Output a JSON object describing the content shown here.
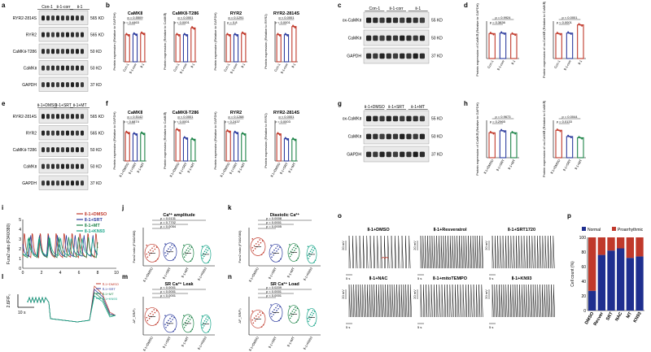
{
  "panel_labels": [
    "a",
    "b",
    "c",
    "d",
    "e",
    "f",
    "g",
    "h",
    "i",
    "j",
    "k",
    "l",
    "m",
    "n",
    "o",
    "p"
  ],
  "blots": {
    "a": {
      "headers": [
        "Con-1",
        "Ⅱ-1-corr",
        "Ⅱ-1"
      ],
      "rows": [
        {
          "label": "RYR2-2814S",
          "kd": "565 KD"
        },
        {
          "label": "RYR2",
          "kd": "565 KD"
        },
        {
          "label": "CaMKⅡ-T286",
          "kd": "50 KD"
        },
        {
          "label": "CaMKⅡ",
          "kd": "50 KD"
        },
        {
          "label": "GAPDH",
          "kd": "37 KD"
        }
      ]
    },
    "c": {
      "headers": [
        "Con-1",
        "Ⅱ-1-corr",
        "Ⅱ-1"
      ],
      "rows": [
        {
          "label": "ox-CaMKⅡ",
          "kd": "55 KD"
        },
        {
          "label": "CaMKⅡ",
          "kd": "50 KD"
        },
        {
          "label": "GAPDH",
          "kd": "37 KD"
        }
      ]
    },
    "e": {
      "headers": [
        "Ⅱ-1+DMSO",
        "Ⅱ-1+SRT",
        "Ⅱ-1+MT"
      ],
      "rows": [
        {
          "label": "RYR2-2814S",
          "kd": "565 KD"
        },
        {
          "label": "RYR2",
          "kd": "565 KD"
        },
        {
          "label": "CaMKⅡ-T286",
          "kd": "50 KD"
        },
        {
          "label": "CaMKⅡ",
          "kd": "50 KD"
        },
        {
          "label": "GAPDH",
          "kd": "37 KD"
        }
      ]
    },
    "g": {
      "headers": [
        "Ⅱ-1+DMSO",
        "Ⅱ-1+SRT",
        "Ⅱ-1+MT"
      ],
      "rows": [
        {
          "label": "ox-CaMKⅡ",
          "kd": "55 KD"
        },
        {
          "label": "CaMKⅡ",
          "kd": "50 KD"
        },
        {
          "label": "GAPDH",
          "kd": "37 KD"
        }
      ]
    }
  },
  "chart_data": [
    {
      "panel": "b",
      "type": "bar",
      "title": "CaMKⅡ",
      "ylabel": "Protein expression (Relative to GAPDH)",
      "ylim": [
        0,
        1.5
      ],
      "categories": [
        "Con-1",
        "Ⅱ-1-corr",
        "Ⅱ-1"
      ],
      "values": [
        1.0,
        1.02,
        1.05
      ],
      "colors": [
        "#c0392b",
        "#2e3d9f",
        "#c0392b"
      ],
      "p_values": [
        "p = 0.5509",
        "p = 0.4463"
      ]
    },
    {
      "panel": "b",
      "type": "bar",
      "title": "CaMKⅡ-T286",
      "ylabel": "Protein expression (Relative to CaMKⅡ)",
      "ylim": [
        0,
        1.5
      ],
      "categories": [
        "Con-1",
        "Ⅱ-1-corr",
        "Ⅱ-1"
      ],
      "values": [
        1.0,
        1.0,
        1.25
      ],
      "colors": [
        "#c0392b",
        "#2e3d9f",
        "#c0392b"
      ],
      "p_values": [
        "p < 0.0001",
        "p < 0.0001"
      ]
    },
    {
      "panel": "b",
      "type": "bar",
      "title": "RYR2",
      "ylabel": "Protein expression (Relative to GAPDH)",
      "ylim": [
        0,
        1.5
      ],
      "categories": [
        "Con-1",
        "Ⅱ-1-corr",
        "Ⅱ-1"
      ],
      "values": [
        1.0,
        1.0,
        1.05
      ],
      "colors": [
        "#c0392b",
        "#2e3d9f",
        "#c0392b"
      ],
      "p_values": [
        "p = 0.1291",
        "p = 0.8"
      ]
    },
    {
      "panel": "b",
      "type": "bar",
      "title": "RYR2-2814S",
      "ylabel": "Protein expression (Relative to RYR2)",
      "ylim": [
        0,
        1.5
      ],
      "categories": [
        "Con-1",
        "Ⅱ-1-corr",
        "Ⅱ-1"
      ],
      "values": [
        1.0,
        1.0,
        1.3
      ],
      "colors": [
        "#c0392b",
        "#2e3d9f",
        "#c0392b"
      ],
      "p_values": [
        "p < 0.0001",
        "p < 0.0001"
      ]
    },
    {
      "panel": "d",
      "type": "bar",
      "title": "",
      "ylabel": "Protein expression of CaMKⅡ (Relative to GAPDH)",
      "ylim": [
        0,
        1.5
      ],
      "categories": [
        "Con-1",
        "Ⅱ-1-corr",
        "Ⅱ-1"
      ],
      "values": [
        1.0,
        1.02,
        0.98
      ],
      "colors": [
        "#c0392b",
        "#2e3d9f",
        "#c0392b"
      ],
      "p_values": [
        "p = 0.9924",
        "p = 0.3836"
      ]
    },
    {
      "panel": "d",
      "type": "bar",
      "title": "",
      "ylabel": "Protein expression of ox-CaMKⅡ (Relative to CaMKⅡ)",
      "ylim": [
        0,
        1.5
      ],
      "categories": [
        "Con-1",
        "Ⅱ-1-corr",
        "Ⅱ-1"
      ],
      "values": [
        1.0,
        1.02,
        1.35
      ],
      "colors": [
        "#c0392b",
        "#2e3d9f",
        "#c0392b"
      ],
      "p_values": [
        "p < 0.0001",
        "p < 0.0001"
      ]
    },
    {
      "panel": "f",
      "type": "bar",
      "title": "CaMKⅡ",
      "ylabel": "Protein expression (Relative to GAPDH)",
      "ylim": [
        0,
        1.5
      ],
      "categories": [
        "Ⅱ-1+DMSO",
        "Ⅱ-1+SRT",
        "Ⅱ-1+MT"
      ],
      "values": [
        1.05,
        1.0,
        1.02
      ],
      "colors": [
        "#c0392b",
        "#2e3d9f",
        "#1e8449"
      ],
      "p_values": [
        "p = 0.5142",
        "p = 0.6874"
      ]
    },
    {
      "panel": "f",
      "type": "bar",
      "title": "CaMKⅡ-T286",
      "ylabel": "Protein expression (Relative to CaMKⅡ)",
      "ylim": [
        0,
        1.5
      ],
      "categories": [
        "Ⅱ-1+DMSO",
        "Ⅱ-1+SRT",
        "Ⅱ-1+MT"
      ],
      "values": [
        1.15,
        0.85,
        0.8
      ],
      "colors": [
        "#c0392b",
        "#2e3d9f",
        "#1e8449"
      ],
      "p_values": [
        "p < 0.0001",
        "p < 0.0001"
      ]
    },
    {
      "panel": "f",
      "type": "bar",
      "title": "RYR2",
      "ylabel": "Protein expression (Relative to GAPDH)",
      "ylim": [
        0,
        1.5
      ],
      "categories": [
        "Ⅱ-1+DMSO",
        "Ⅱ-1+SRT",
        "Ⅱ-1+MT"
      ],
      "values": [
        1.1,
        1.05,
        1.0
      ],
      "colors": [
        "#c0392b",
        "#2e3d9f",
        "#1e8449"
      ],
      "p_values": [
        "p = 0.1268",
        "p = 0.2437"
      ]
    },
    {
      "panel": "f",
      "type": "bar",
      "title": "RYR2-2814S",
      "ylabel": "Protein expression (Relative to RYR2)",
      "ylim": [
        0,
        1.5
      ],
      "categories": [
        "Ⅱ-1+DMSO",
        "Ⅱ-1+SRT",
        "Ⅱ-1+MT"
      ],
      "values": [
        1.0,
        0.82,
        0.8
      ],
      "colors": [
        "#c0392b",
        "#2e3d9f",
        "#1e8449"
      ],
      "p_values": [
        "p < 0.0001",
        "p = 0.0003"
      ]
    },
    {
      "panel": "h",
      "type": "bar",
      "title": "",
      "ylabel": "Protein expression of CaMKⅡ (Relative to GAPDH)",
      "ylim": [
        0,
        1.5
      ],
      "categories": [
        "Ⅱ-1+DMSO",
        "Ⅱ-1+SRT",
        "Ⅱ-1+MT"
      ],
      "values": [
        1.0,
        1.08,
        1.0
      ],
      "colors": [
        "#c0392b",
        "#2e3d9f",
        "#1e8449"
      ],
      "p_values": [
        "p = 0.9673",
        "p = 0.2965"
      ]
    },
    {
      "panel": "h",
      "type": "bar",
      "title": "",
      "ylabel": "Protein expression of ox-CaMKⅡ (Relative to CaMKⅡ)",
      "ylim": [
        0,
        1.5
      ],
      "categories": [
        "Ⅱ-1+DMSO",
        "Ⅱ-1+SRT",
        "Ⅱ-1+MT"
      ],
      "values": [
        1.1,
        0.85,
        0.8
      ],
      "colors": [
        "#c0392b",
        "#2e3d9f",
        "#1e8449"
      ],
      "p_values": [
        "p = 0.0044",
        "p = 0.0133"
      ]
    },
    {
      "panel": "i",
      "type": "line",
      "title": "",
      "xlabel": "",
      "ylabel": "Fura2 ratio (F340/380)",
      "xlim": [
        0,
        10
      ],
      "ylim": [
        0,
        5
      ],
      "xticks": [
        "0",
        "2",
        "4",
        "6",
        "8",
        "10"
      ],
      "yticks": [
        "0",
        "1",
        "2",
        "3",
        "4",
        "5"
      ],
      "series": [
        {
          "name": "Ⅱ-1+DMSO",
          "color": "#c0392b",
          "period": 0.85,
          "phase": 0.0,
          "min": 1.1,
          "max": 3.9
        },
        {
          "name": "Ⅱ-1+SRT",
          "color": "#2e3d9f",
          "period": 0.95,
          "phase": 0.3,
          "min": 1.2,
          "max": 3.5
        },
        {
          "name": "Ⅱ-1+MT",
          "color": "#1e8449",
          "period": 1.05,
          "phase": 0.55,
          "min": 1.1,
          "max": 3.3
        },
        {
          "name": "Ⅱ-1+KN93",
          "color": "#17a589",
          "period": 1.15,
          "phase": 0.8,
          "min": 1.3,
          "max": 3.2
        }
      ]
    },
    {
      "panel": "j",
      "type": "scatter",
      "title": "Ca²⁺ amplitude",
      "ylabel": "Fura2 ratio (F340/380)",
      "ylim": [
        0,
        0.3
      ],
      "categories": [
        "Ⅱ-1+DMSO",
        "Ⅱ-1+SRT",
        "Ⅱ-1+MT",
        "Ⅱ-1+KN93"
      ],
      "medians": [
        0.1,
        0.11,
        0.1,
        0.09
      ],
      "colors": [
        "#c0392b",
        "#2e3d9f",
        "#1e8449",
        "#17a589"
      ],
      "p_values": [
        "p = 0.0131",
        "p = 0.7702",
        "p = 0.0054"
      ]
    },
    {
      "panel": "k",
      "type": "scatter",
      "title": "Diastolic Ca²⁺",
      "ylabel": "Fura2 ratio (F340/380)",
      "ylim": [
        0,
        0.6
      ],
      "categories": [
        "Ⅱ-1+DMSO",
        "Ⅱ-1+SRT",
        "Ⅱ-1+MT",
        "Ⅱ-1+KN93"
      ],
      "medians": [
        0.3,
        0.2,
        0.21,
        0.18
      ],
      "colors": [
        "#c0392b",
        "#2e3d9f",
        "#1e8449",
        "#17a589"
      ],
      "p_values": [
        "p = 0.0008",
        "p < 0.0001",
        "p = 0.0005"
      ]
    },
    {
      "panel": "m",
      "type": "scatter",
      "title": "SR Ca²⁺ Leak",
      "ylabel": "ΔF_SR/F₀",
      "ylim": [
        0,
        1.0
      ],
      "categories": [
        "Ⅱ-1+DMSO",
        "Ⅱ-1+SRT",
        "Ⅱ-1+MT",
        "Ⅱ-1+KN93"
      ],
      "medians": [
        0.48,
        0.3,
        0.3,
        0.29
      ],
      "colors": [
        "#c0392b",
        "#2e3d9f",
        "#1e8449",
        "#17a589"
      ],
      "p_values": [
        "p < 0.0001",
        "p < 0.0001",
        "p < 0.0001"
      ]
    },
    {
      "panel": "n",
      "type": "scatter",
      "title": "SR Ca²⁺ Load",
      "ylabel": "ΔF_SR/F₀",
      "ylim": [
        0,
        12
      ],
      "categories": [
        "Ⅱ-1+DMSO",
        "Ⅱ-1+SRT",
        "Ⅱ-1+MT",
        "Ⅱ-1+KN93"
      ],
      "medians": [
        5.0,
        7.0,
        6.5,
        5.5
      ],
      "colors": [
        "#c0392b",
        "#2e3d9f",
        "#1e8449",
        "#17a589"
      ],
      "p_values": [
        "p = 0.0209",
        "p < 0.0001",
        "p < 0.0001"
      ]
    },
    {
      "panel": "p",
      "type": "bar",
      "title": "",
      "ylabel": "Cell count (%)",
      "ylim": [
        0,
        100
      ],
      "yticks": [
        "0",
        "20",
        "40",
        "60",
        "80",
        "100"
      ],
      "categories": [
        "DMSO",
        "Resver",
        "SRT",
        "NAC",
        "MT",
        "KN93"
      ],
      "series": [
        {
          "name": "Normal",
          "color": "#1f2f8f",
          "values": [
            27,
            76,
            82,
            85,
            72,
            74
          ]
        },
        {
          "name": "Proarrhythmic",
          "color": "#c0392b",
          "values": [
            73,
            24,
            18,
            15,
            28,
            26
          ]
        }
      ]
    }
  ],
  "panel_i_legend": [
    "Ⅱ-1+DMSO",
    "Ⅱ-1+SRT",
    "Ⅱ-1+MT",
    "Ⅱ-1+KN93"
  ],
  "panel_l": {
    "legend": [
      "Ⅱ-1+DMSO",
      "Ⅱ-1+SRT",
      "Ⅱ-1+MT",
      "Ⅱ-1+KN93"
    ],
    "scale_y": "2 ΔF/F₀",
    "scale_x": "10 s"
  },
  "panel_o": {
    "labels": [
      "Ⅱ-1+DMSO",
      "Ⅱ-1+Resveratrol",
      "Ⅱ-1+SRT1720",
      "Ⅱ-1+NAC",
      "Ⅱ-1+mitoTEMPO",
      "Ⅱ-1+KN93"
    ],
    "scale_y": "20 mV",
    "scale_x": "5 s"
  }
}
